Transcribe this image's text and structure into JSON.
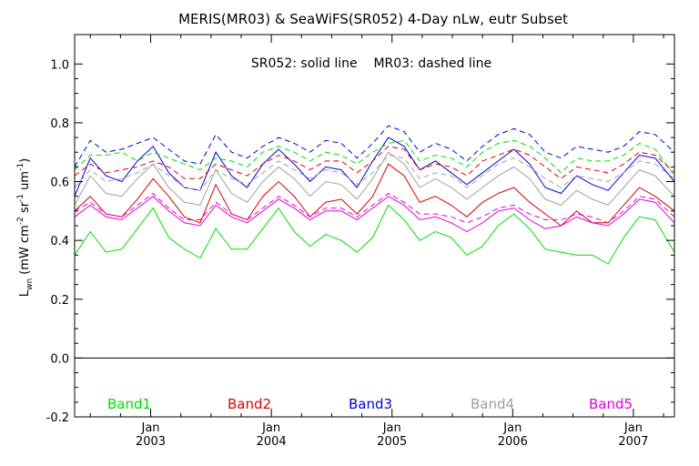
{
  "chart_data": {
    "type": "line",
    "title": "MERIS(MR03) & SeaWiFS(SR052) 4-Day nLw, eutr Subset",
    "annotation": "SR052: solid line    MR03: dashed line",
    "ylabel": "L_wn (mW cm^-2 sr^-1 um^-1)",
    "ylabel_parts": {
      "main": "L",
      "sub": "wn",
      "units_open": " (mW cm",
      "exp1": "-2",
      "units_mid": " sr",
      "exp2": "-1",
      "units_um": " um",
      "exp3": "-1",
      "units_close": ")"
    },
    "ylim": [
      -0.2,
      1.1
    ],
    "y_ticks": [
      "-0.2",
      "0.0",
      "0.2",
      "0.4",
      "0.6",
      "0.8",
      "1.0"
    ],
    "y_tick_values": [
      -0.2,
      0.0,
      0.2,
      0.4,
      0.6,
      0.8,
      1.0
    ],
    "xlim": [
      2002.37,
      2007.34
    ],
    "x_ticks": [
      {
        "month": "Jan",
        "year": "2003",
        "value": 2003.0
      },
      {
        "month": "Jan",
        "year": "2004",
        "value": 2004.0
      },
      {
        "month": "Jan",
        "year": "2005",
        "value": 2005.0
      },
      {
        "month": "Jan",
        "year": "2006",
        "value": 2006.0
      },
      {
        "month": "Jan",
        "year": "2007",
        "value": 2007.0
      }
    ],
    "zero_line": 0.0,
    "x": [
      2002.37,
      2002.5,
      2002.63,
      2002.76,
      2002.89,
      2003.02,
      2003.15,
      2003.28,
      2003.41,
      2003.54,
      2003.67,
      2003.8,
      2003.93,
      2004.06,
      2004.19,
      2004.32,
      2004.45,
      2004.58,
      2004.71,
      2004.84,
      2004.97,
      2005.1,
      2005.23,
      2005.36,
      2005.49,
      2005.62,
      2005.75,
      2005.88,
      2006.01,
      2006.14,
      2006.27,
      2006.4,
      2006.53,
      2006.66,
      2006.79,
      2006.92,
      2007.05,
      2007.18,
      2007.34
    ],
    "series": [
      {
        "name": "Band1",
        "color": "#00dd00",
        "dashed": false,
        "values": [
          0.35,
          0.43,
          0.36,
          0.37,
          0.44,
          0.51,
          0.41,
          0.37,
          0.34,
          0.44,
          0.37,
          0.37,
          0.44,
          0.51,
          0.43,
          0.38,
          0.42,
          0.4,
          0.36,
          0.41,
          0.52,
          0.47,
          0.4,
          0.43,
          0.41,
          0.35,
          0.38,
          0.45,
          0.49,
          0.44,
          0.37,
          0.36,
          0.35,
          0.35,
          0.32,
          0.41,
          0.48,
          0.47,
          0.36
        ]
      },
      {
        "name": "Band2",
        "color": "#dd0000",
        "dashed": false,
        "values": [
          0.5,
          0.55,
          0.49,
          0.48,
          0.54,
          0.61,
          0.55,
          0.48,
          0.46,
          0.59,
          0.49,
          0.47,
          0.55,
          0.6,
          0.55,
          0.48,
          0.53,
          0.54,
          0.49,
          0.55,
          0.66,
          0.62,
          0.53,
          0.55,
          0.52,
          0.48,
          0.53,
          0.56,
          0.58,
          0.53,
          0.49,
          0.45,
          0.5,
          0.46,
          0.46,
          0.52,
          0.58,
          0.55,
          0.5
        ]
      },
      {
        "name": "Band3",
        "color": "#0000dd",
        "dashed": false,
        "values": [
          0.55,
          0.68,
          0.62,
          0.6,
          0.67,
          0.72,
          0.63,
          0.58,
          0.57,
          0.7,
          0.62,
          0.58,
          0.66,
          0.71,
          0.66,
          0.6,
          0.65,
          0.64,
          0.58,
          0.67,
          0.75,
          0.72,
          0.64,
          0.67,
          0.63,
          0.59,
          0.63,
          0.67,
          0.71,
          0.66,
          0.58,
          0.56,
          0.62,
          0.59,
          0.57,
          0.63,
          0.69,
          0.68,
          0.6
        ]
      },
      {
        "name": "Band4",
        "color": "#a0a0a0",
        "dashed": false,
        "values": [
          0.52,
          0.62,
          0.56,
          0.55,
          0.61,
          0.66,
          0.58,
          0.53,
          0.52,
          0.64,
          0.56,
          0.53,
          0.6,
          0.65,
          0.61,
          0.55,
          0.6,
          0.59,
          0.54,
          0.61,
          0.7,
          0.66,
          0.58,
          0.61,
          0.58,
          0.54,
          0.58,
          0.62,
          0.65,
          0.61,
          0.54,
          0.52,
          0.57,
          0.54,
          0.52,
          0.58,
          0.64,
          0.62,
          0.55
        ]
      },
      {
        "name": "Band5",
        "color": "#dd00dd",
        "dashed": false,
        "values": [
          0.48,
          0.52,
          0.48,
          0.47,
          0.51,
          0.55,
          0.5,
          0.46,
          0.45,
          0.52,
          0.48,
          0.46,
          0.5,
          0.54,
          0.51,
          0.47,
          0.5,
          0.5,
          0.47,
          0.51,
          0.55,
          0.52,
          0.47,
          0.48,
          0.46,
          0.43,
          0.46,
          0.5,
          0.51,
          0.47,
          0.44,
          0.45,
          0.48,
          0.46,
          0.45,
          0.49,
          0.54,
          0.53,
          0.46
        ]
      },
      {
        "name": "Band1",
        "color": "#00dd00",
        "dashed": true,
        "values": [
          0.64,
          0.69,
          0.69,
          0.7,
          0.67,
          0.7,
          0.68,
          0.66,
          0.64,
          0.68,
          0.67,
          0.65,
          0.7,
          0.72,
          0.7,
          0.67,
          0.7,
          0.69,
          0.66,
          0.7,
          0.73,
          0.74,
          0.67,
          0.69,
          0.68,
          0.65,
          0.7,
          0.73,
          0.74,
          0.72,
          0.68,
          0.63,
          0.68,
          0.67,
          0.67,
          0.69,
          0.73,
          0.71,
          0.62
        ]
      },
      {
        "name": "Band2",
        "color": "#dd0000",
        "dashed": true,
        "values": [
          0.62,
          0.66,
          0.63,
          0.64,
          0.65,
          0.67,
          0.65,
          0.61,
          0.61,
          0.66,
          0.64,
          0.62,
          0.66,
          0.69,
          0.67,
          0.64,
          0.67,
          0.67,
          0.63,
          0.67,
          0.72,
          0.71,
          0.64,
          0.66,
          0.65,
          0.62,
          0.67,
          0.69,
          0.71,
          0.69,
          0.65,
          0.61,
          0.65,
          0.64,
          0.63,
          0.66,
          0.7,
          0.69,
          0.63
        ]
      },
      {
        "name": "Band3",
        "color": "#0000dd",
        "dashed": true,
        "values": [
          0.65,
          0.74,
          0.7,
          0.71,
          0.73,
          0.75,
          0.71,
          0.67,
          0.66,
          0.76,
          0.7,
          0.68,
          0.72,
          0.75,
          0.73,
          0.7,
          0.74,
          0.73,
          0.68,
          0.73,
          0.79,
          0.77,
          0.7,
          0.73,
          0.71,
          0.67,
          0.72,
          0.76,
          0.78,
          0.76,
          0.7,
          0.68,
          0.72,
          0.71,
          0.7,
          0.72,
          0.77,
          0.76,
          0.7
        ]
      },
      {
        "name": "Band4",
        "color": "#a0a0a0",
        "dashed": true,
        "values": [
          0.58,
          0.64,
          0.6,
          0.61,
          0.63,
          0.66,
          0.62,
          0.58,
          0.57,
          0.64,
          0.61,
          0.59,
          0.63,
          0.67,
          0.64,
          0.61,
          0.64,
          0.63,
          0.59,
          0.63,
          0.69,
          0.68,
          0.61,
          0.63,
          0.62,
          0.58,
          0.62,
          0.66,
          0.68,
          0.65,
          0.61,
          0.58,
          0.62,
          0.61,
          0.6,
          0.63,
          0.67,
          0.66,
          0.61
        ]
      },
      {
        "name": "Band5",
        "color": "#dd00dd",
        "dashed": true,
        "values": [
          0.5,
          0.53,
          0.49,
          0.48,
          0.52,
          0.56,
          0.51,
          0.47,
          0.47,
          0.53,
          0.49,
          0.47,
          0.51,
          0.55,
          0.52,
          0.48,
          0.51,
          0.51,
          0.48,
          0.52,
          0.56,
          0.53,
          0.49,
          0.49,
          0.48,
          0.46,
          0.48,
          0.51,
          0.52,
          0.49,
          0.47,
          0.47,
          0.49,
          0.48,
          0.46,
          0.5,
          0.55,
          0.54,
          0.48
        ]
      }
    ],
    "legend": [
      {
        "label": "Band1",
        "color": "#00dd00"
      },
      {
        "label": "Band2",
        "color": "#dd0000"
      },
      {
        "label": "Band3",
        "color": "#0000dd"
      },
      {
        "label": "Band4",
        "color": "#a0a0a0"
      },
      {
        "label": "Band5",
        "color": "#dd00dd"
      }
    ],
    "legend_placement": "bottom inside plot",
    "grid": false
  }
}
